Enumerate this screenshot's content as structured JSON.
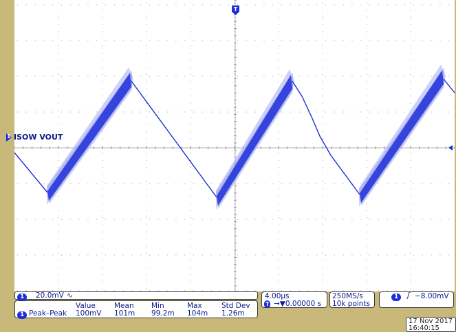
{
  "channel": {
    "number": "1",
    "label": "ISOW VOUT",
    "scale": "20.0mV",
    "coupling_icon": "bandwidth-limit-icon"
  },
  "measurements": {
    "headers": [
      "Value",
      "Mean",
      "Min",
      "Max",
      "Std Dev"
    ],
    "rows": [
      {
        "name": "Peak–Peak",
        "values": [
          "100mV",
          "101m",
          "99.2m",
          "104m",
          "1.26m"
        ]
      }
    ]
  },
  "timebase": {
    "scale": "4.00µs",
    "position": "→▼0.00000 s",
    "sample_rate": "250MS/s",
    "record_length": "10k points"
  },
  "trigger": {
    "source": "1",
    "slope_icon": "rising-edge-icon",
    "level": "−8.00mV"
  },
  "datetime": {
    "date": "17 Nov 2017",
    "time": "16:40:15"
  },
  "colors": {
    "trace": "#1d2fd6",
    "bezel": "#c8b87a",
    "grid": "#9a9a9a"
  }
}
